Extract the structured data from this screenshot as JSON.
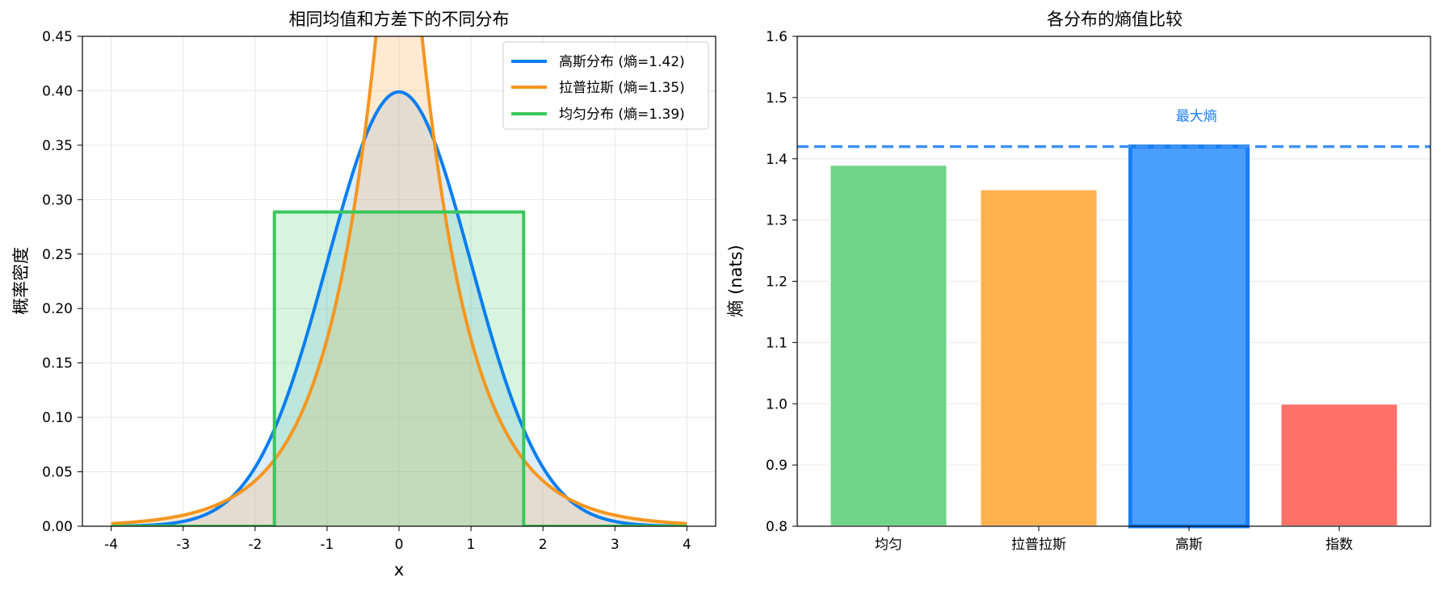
{
  "chart_data": [
    {
      "type": "line",
      "title": "相同均值和方差下的不同分布",
      "xlabel": "x",
      "ylabel": "概率密度",
      "xlim": [
        -4.4,
        4.4
      ],
      "ylim": [
        0,
        0.45
      ],
      "xticks": [
        -4,
        -3,
        -2,
        -1,
        0,
        1,
        2,
        3,
        4
      ],
      "xtick_labels": [
        "-4",
        "-3",
        "-2",
        "-1",
        "0",
        "1",
        "2",
        "3",
        "4"
      ],
      "yticks": [
        0,
        0.05,
        0.1,
        0.15,
        0.2,
        0.25,
        0.3,
        0.35,
        0.4,
        0.45
      ],
      "ytick_labels": [
        "0.00",
        "0.05",
        "0.10",
        "0.15",
        "0.20",
        "0.25",
        "0.30",
        "0.35",
        "0.40",
        "0.45"
      ],
      "grid": true,
      "legend_position": "top-right",
      "x_range": [
        -4,
        4
      ],
      "series": [
        {
          "name": "高斯分布 (熵=1.42)",
          "dist": "gaussian",
          "mean": 0,
          "sd": 1,
          "color": "#0a7ef0",
          "fill": "#4fa3f5",
          "fill_alpha": 0.2
        },
        {
          "name": "拉普拉斯 (熵=1.35)",
          "dist": "laplace",
          "mean": 0,
          "b": 0.7071,
          "color": "#f5961e",
          "fill": "#fbb56c",
          "fill_alpha": 0.3
        },
        {
          "name": "均匀分布 (熵=1.39)",
          "dist": "uniform",
          "a": -1.732,
          "b": 1.732,
          "color": "#39c75a",
          "fill": "#5fd27c",
          "fill_alpha": 0.25
        }
      ]
    },
    {
      "type": "bar",
      "title": "各分布的熵值比较",
      "xlabel": "",
      "ylabel": "熵 (nats)",
      "ylim": [
        0.8,
        1.6
      ],
      "yticks": [
        0.8,
        0.9,
        1.0,
        1.1,
        1.2,
        1.3,
        1.4,
        1.5,
        1.6
      ],
      "ytick_labels": [
        "0.8",
        "0.9",
        "1.0",
        "1.1",
        "1.2",
        "1.3",
        "1.4",
        "1.5",
        "1.6"
      ],
      "categories": [
        "均匀",
        "拉普拉斯",
        "高斯",
        "指数"
      ],
      "values": [
        1.39,
        1.35,
        1.42,
        1.0
      ],
      "bar_colors": [
        "#6fd488",
        "#ffb24d",
        "#4a9ffd",
        "#ff7068"
      ],
      "highlight_category": "高斯",
      "highlight_edge_color": "#1a7ef5",
      "reference_line": {
        "y": 1.42,
        "color": "#3d92f2",
        "style": "dashed"
      },
      "annotation": {
        "text": "最大熵",
        "x_category": "高斯",
        "x_offset": 0.05,
        "y": 1.47,
        "color": "#1a7ef5"
      },
      "grid": "y"
    }
  ]
}
